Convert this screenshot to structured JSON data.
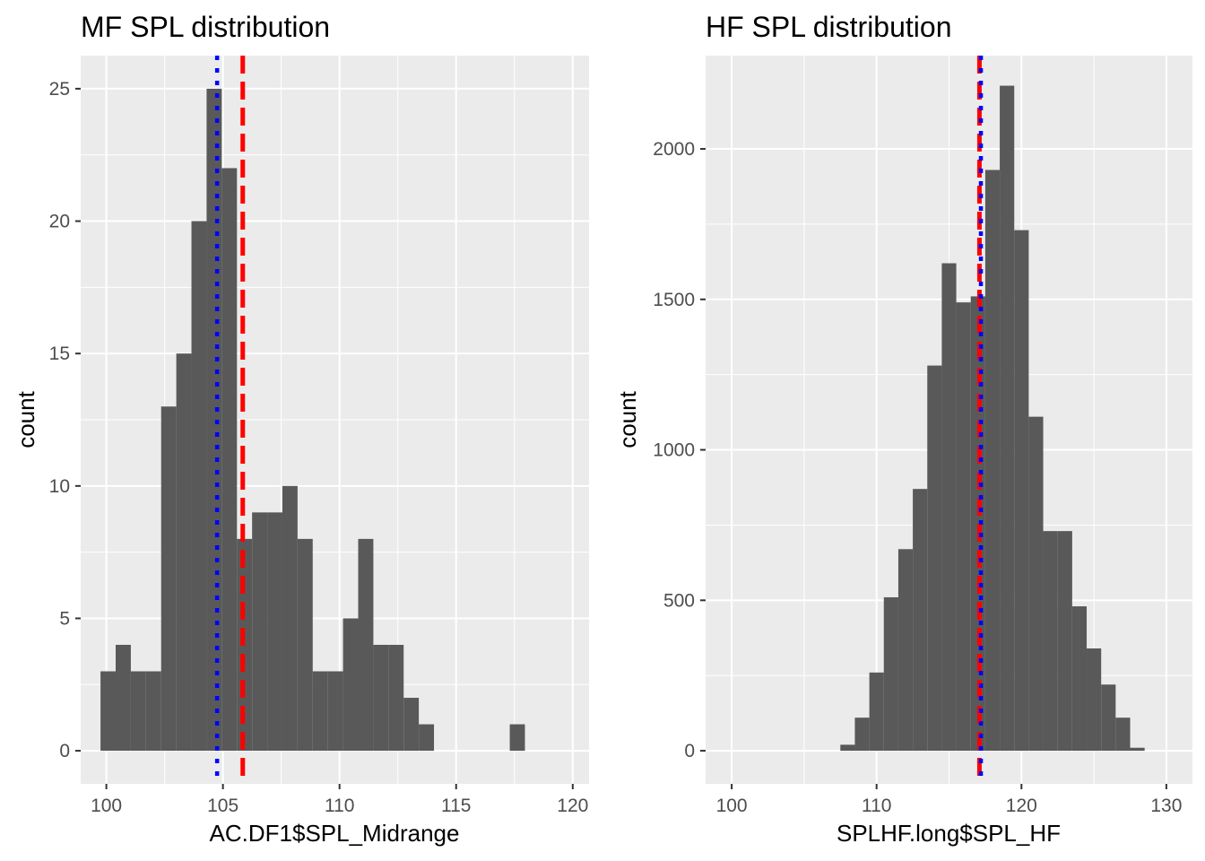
{
  "chart_data": [
    {
      "type": "bar",
      "title": "MF SPL distribution",
      "xlabel": "AC.DF1$SPL_Midrange",
      "ylabel": "count",
      "xlim": [
        98.9,
        120.7
      ],
      "ylim": [
        -1.25,
        26.25
      ],
      "x_ticks": [
        100,
        105,
        110,
        115,
        120
      ],
      "x_tick_labels": [
        "100",
        "105",
        "110",
        "115",
        "120"
      ],
      "y_ticks": [
        0,
        5,
        10,
        15,
        20,
        25
      ],
      "y_tick_labels": [
        "0",
        "5",
        "10",
        "15",
        "20",
        "25"
      ],
      "bin_width": 0.65,
      "bin_start": 99.75,
      "bar_counts": [
        3,
        4,
        3,
        3,
        13,
        15,
        20,
        25,
        22,
        8,
        9,
        9,
        10,
        8,
        3,
        3,
        5,
        8,
        4,
        4,
        2,
        1,
        0,
        0,
        0,
        0,
        0,
        1
      ],
      "grid": true,
      "bar_color": "#595959",
      "reference_lines": [
        {
          "x": 104.75,
          "style": "dotted",
          "color": "#0000ff"
        },
        {
          "x": 105.85,
          "style": "dashed",
          "color": "#ff0000"
        }
      ]
    },
    {
      "type": "bar",
      "title": "HF SPL distribution",
      "xlabel": "SPLHF.long$SPL_HF",
      "ylabel": "count",
      "xlim": [
        98.2,
        131.8
      ],
      "ylim": [
        -110,
        2310
      ],
      "x_ticks": [
        100,
        110,
        120,
        130
      ],
      "x_tick_labels": [
        "100",
        "110",
        "120",
        "130"
      ],
      "y_ticks": [
        0,
        500,
        1000,
        1500,
        2000
      ],
      "y_tick_labels": [
        "0",
        "500",
        "1000",
        "1500",
        "2000"
      ],
      "bin_width": 1.0,
      "bin_start": 107.5,
      "bar_counts": [
        20,
        110,
        260,
        510,
        670,
        870,
        1280,
        1620,
        1490,
        1510,
        1930,
        2210,
        1730,
        1110,
        730,
        730,
        480,
        340,
        220,
        110,
        10
      ],
      "grid": true,
      "bar_color": "#595959",
      "reference_lines": [
        {
          "x": 117.1,
          "style": "dashed",
          "color": "#ff0000"
        },
        {
          "x": 117.2,
          "style": "dotted",
          "color": "#0000ff"
        }
      ]
    }
  ]
}
